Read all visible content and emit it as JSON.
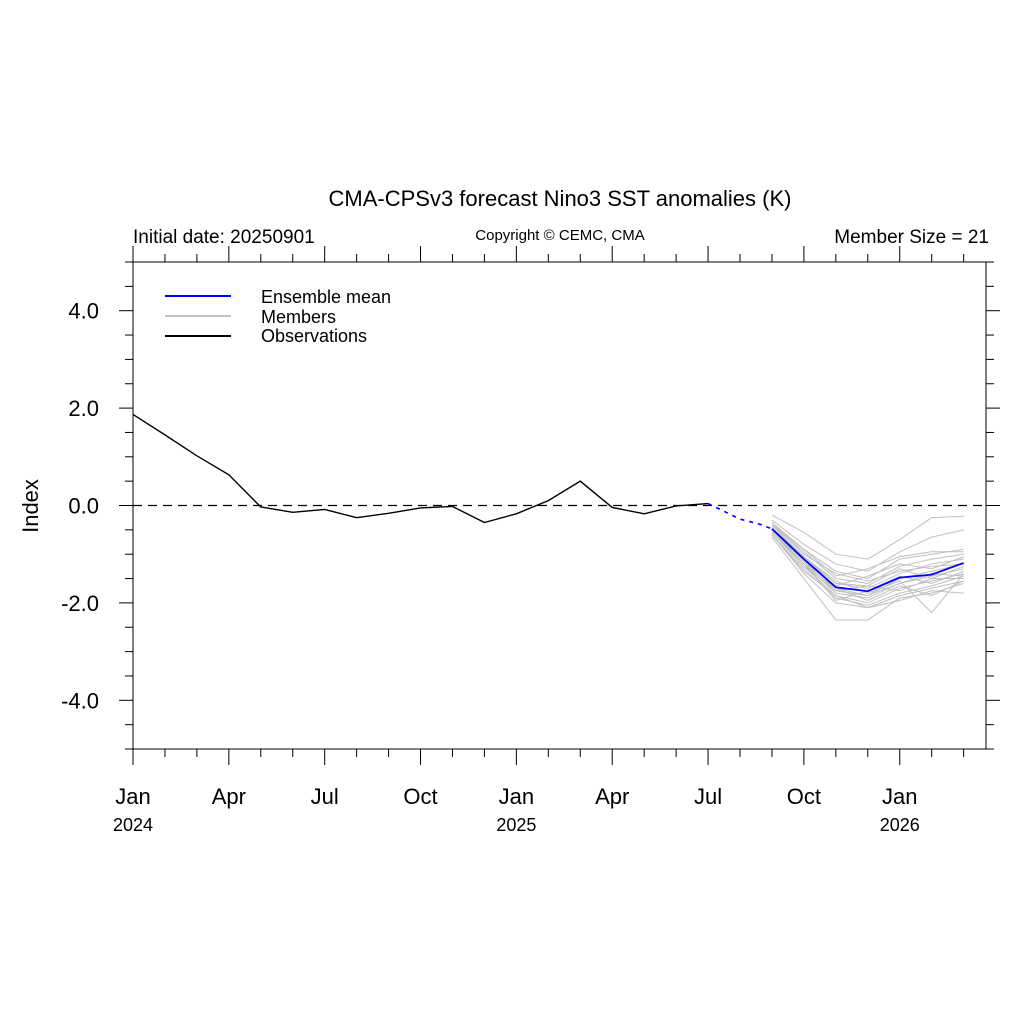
{
  "chart_data": {
    "type": "line",
    "title": "CMA-CPSv3 forecast Nino3 SST anomalies (K)",
    "initial_date_label": "Initial date: 20250901",
    "copyright": "Copyright © CEMC, CMA",
    "member_size_label": "Member Size = 21",
    "ylabel": "Index",
    "xlabel": "",
    "ylim": [
      -5,
      5
    ],
    "xlim": [
      0,
      26.7
    ],
    "y_ticks": [
      {
        "value": 4,
        "label": "4.0"
      },
      {
        "value": 2,
        "label": "2.0"
      },
      {
        "value": 0,
        "label": "0.0"
      },
      {
        "value": -2,
        "label": "-2.0"
      },
      {
        "value": -4,
        "label": "-4.0"
      }
    ],
    "x_ticks": [
      {
        "value": 0,
        "label": "Jan"
      },
      {
        "value": 3,
        "label": "Apr"
      },
      {
        "value": 6,
        "label": "Jul"
      },
      {
        "value": 9,
        "label": "Oct"
      },
      {
        "value": 12,
        "label": "Jan"
      },
      {
        "value": 15,
        "label": "Apr"
      },
      {
        "value": 18,
        "label": "Jul"
      },
      {
        "value": 21,
        "label": "Oct"
      },
      {
        "value": 24,
        "label": "Jan"
      }
    ],
    "year_labels": [
      {
        "value": 0,
        "label": "2024"
      },
      {
        "value": 12,
        "label": "2025"
      },
      {
        "value": 24,
        "label": "2026"
      }
    ],
    "legend": [
      {
        "name": "Ensemble mean",
        "color": "#0000ff"
      },
      {
        "name": "Members",
        "color": "#c0c0c0"
      },
      {
        "name": "Observations",
        "color": "#000000"
      }
    ],
    "colors": {
      "mean": "#0000ff",
      "members": "#c0c0c0",
      "observations": "#000000",
      "zero_line": "#000000"
    },
    "observations": {
      "x": [
        0,
        1,
        2,
        3,
        4,
        5,
        6,
        7,
        8,
        9,
        10,
        11,
        12,
        13,
        14,
        15,
        16,
        17,
        18
      ],
      "y": [
        1.87,
        1.45,
        1.02,
        0.63,
        -0.03,
        -0.14,
        -0.08,
        -0.25,
        -0.16,
        -0.05,
        -0.02,
        -0.35,
        -0.17,
        0.1,
        0.5,
        -0.04,
        -0.17,
        -0.01,
        0.04
      ]
    },
    "transition": {
      "x": [
        19,
        19.3,
        19.6,
        20
      ],
      "y": [
        -0.28,
        -0.33,
        -0.38,
        -0.48
      ]
    },
    "ensemble_mean": {
      "x": [
        20,
        21,
        22,
        23,
        24,
        25,
        26
      ],
      "y": [
        -0.48,
        -1.1,
        -1.68,
        -1.76,
        -1.48,
        -1.42,
        -1.18
      ]
    },
    "members": [
      {
        "x": [
          20,
          21,
          22,
          23,
          24,
          25,
          26
        ],
        "y": [
          -0.2,
          -0.55,
          -1.0,
          -1.1,
          -0.7,
          -0.25,
          -0.22
        ]
      },
      {
        "x": [
          20,
          21,
          22,
          23,
          24,
          25,
          26
        ],
        "y": [
          -0.3,
          -0.8,
          -1.2,
          -1.35,
          -0.95,
          -0.65,
          -0.5
        ]
      },
      {
        "x": [
          20,
          21,
          22,
          23,
          24,
          25,
          26
        ],
        "y": [
          -0.35,
          -0.9,
          -1.35,
          -1.5,
          -1.1,
          -1.0,
          -0.9
        ]
      },
      {
        "x": [
          20,
          21,
          22,
          23,
          24,
          25,
          26
        ],
        "y": [
          -0.4,
          -0.95,
          -1.5,
          -1.6,
          -1.25,
          -1.1,
          -1.0
        ]
      },
      {
        "x": [
          20,
          21,
          22,
          23,
          24,
          25,
          26
        ],
        "y": [
          -0.45,
          -1.05,
          -1.6,
          -1.7,
          -1.4,
          -1.2,
          -1.1
        ]
      },
      {
        "x": [
          20,
          21,
          22,
          23,
          24,
          25,
          26
        ],
        "y": [
          -0.5,
          -1.1,
          -1.7,
          -1.85,
          -1.5,
          -1.35,
          -1.2
        ]
      },
      {
        "x": [
          20,
          21,
          22,
          23,
          24,
          25,
          26
        ],
        "y": [
          -0.5,
          -1.2,
          -1.8,
          -1.9,
          -1.6,
          -1.45,
          -1.3
        ]
      },
      {
        "x": [
          20,
          21,
          22,
          23,
          24,
          25,
          26
        ],
        "y": [
          -0.55,
          -1.25,
          -1.85,
          -2.0,
          -1.7,
          -1.55,
          -1.4
        ]
      },
      {
        "x": [
          20,
          21,
          22,
          23,
          24,
          25,
          26
        ],
        "y": [
          -0.6,
          -1.3,
          -1.9,
          -2.05,
          -1.8,
          -1.65,
          -1.45
        ]
      },
      {
        "x": [
          20,
          21,
          22,
          23,
          24,
          25,
          26
        ],
        "y": [
          -0.6,
          -1.4,
          -2.0,
          -2.1,
          -1.85,
          -1.7,
          -1.55
        ]
      },
      {
        "x": [
          20,
          21,
          22,
          23,
          24,
          25,
          26
        ],
        "y": [
          -0.65,
          -1.5,
          -2.35,
          -2.35,
          -1.9,
          -1.8,
          -1.6
        ]
      },
      {
        "x": [
          20,
          21,
          22,
          23,
          24,
          25,
          26
        ],
        "y": [
          -0.45,
          -1.15,
          -1.75,
          -1.65,
          -1.3,
          -1.5,
          -1.25
        ]
      },
      {
        "x": [
          20,
          21,
          22,
          23,
          24,
          25,
          26
        ],
        "y": [
          -0.4,
          -1.05,
          -1.55,
          -1.8,
          -1.55,
          -2.2,
          -1.4
        ]
      },
      {
        "x": [
          20,
          21,
          22,
          23,
          24,
          25,
          26
        ],
        "y": [
          -0.5,
          -1.15,
          -1.65,
          -1.45,
          -1.2,
          -1.3,
          -1.05
        ]
      },
      {
        "x": [
          20,
          21,
          22,
          23,
          24,
          25,
          26
        ],
        "y": [
          -0.55,
          -1.2,
          -1.95,
          -1.75,
          -1.45,
          -1.6,
          -1.35
        ]
      },
      {
        "x": [
          20,
          21,
          22,
          23,
          24,
          25,
          26
        ],
        "y": [
          -0.35,
          -1.0,
          -1.4,
          -1.55,
          -1.35,
          -1.25,
          -1.2
        ]
      },
      {
        "x": [
          20,
          21,
          22,
          23,
          24,
          25,
          26
        ],
        "y": [
          -0.6,
          -1.35,
          -1.85,
          -2.1,
          -1.95,
          -1.75,
          -1.8
        ]
      },
      {
        "x": [
          20,
          21,
          22,
          23,
          24,
          25,
          26
        ],
        "y": [
          -0.45,
          -1.1,
          -1.6,
          -1.65,
          -1.75,
          -1.5,
          -1.5
        ]
      },
      {
        "x": [
          20,
          21,
          22,
          23,
          24,
          25,
          26
        ],
        "y": [
          -0.4,
          -0.9,
          -1.45,
          -1.3,
          -1.05,
          -0.95,
          -0.95
        ]
      },
      {
        "x": [
          20,
          21,
          22,
          23,
          24,
          25,
          26
        ],
        "y": [
          -0.5,
          -1.2,
          -1.7,
          -1.95,
          -1.65,
          -1.85,
          -1.55
        ]
      },
      {
        "x": [
          20,
          21,
          22,
          23,
          24,
          25,
          26
        ],
        "y": [
          -0.55,
          -1.25,
          -1.75,
          -1.85,
          -1.6,
          -1.4,
          -1.45
        ]
      }
    ]
  }
}
